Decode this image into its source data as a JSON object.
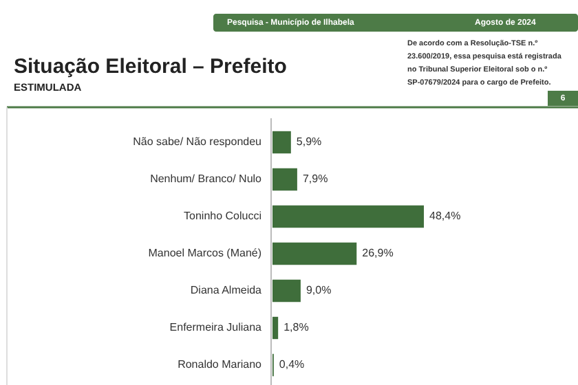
{
  "chart_data": {
    "type": "bar",
    "orientation": "horizontal",
    "title": "Situação Eleitoral – Prefeito",
    "subtitle": "ESTIMULADA",
    "categories": [
      "Não sabe/ Não respondeu",
      "Nenhum/ Branco/ Nulo",
      "Toninho Colucci",
      "Manoel Marcos (Mané)",
      "Diana Almeida",
      "Enfermeira Juliana",
      "Ronaldo Mariano"
    ],
    "values": [
      5.9,
      7.9,
      48.4,
      26.9,
      9.0,
      1.8,
      0.4
    ],
    "value_labels": [
      "5,9%",
      "7,9%",
      "48,4%",
      "26,9%",
      "9,0%",
      "1,8%",
      "0,4%"
    ],
    "color": "#3f6e3b",
    "annotations": [
      "Pesquisa - Município de Ilhabela",
      "Agosto de 2024",
      "De acordo com a Resolução-TSE n.º\n23.600/2019, essa pesquisa está registrada\nno Tribunal Superior Eleitoral sob o n.º\nSP-07679/2024 para o cargo de Prefeito.",
      "6"
    ]
  }
}
